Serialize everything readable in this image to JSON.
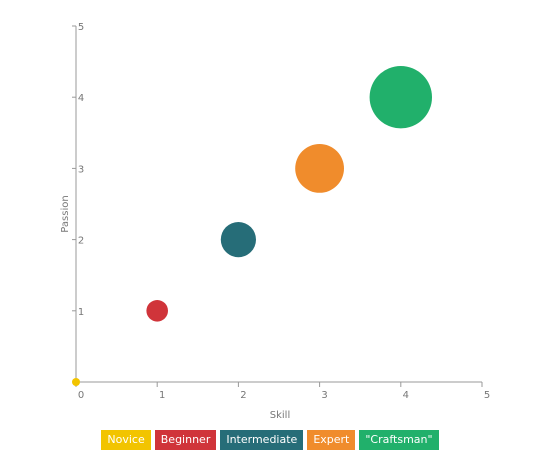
{
  "chart_data": {
    "type": "scatter",
    "xlabel": "Skill",
    "ylabel": "Passion",
    "xlim": [
      0,
      5
    ],
    "ylim": [
      0,
      5
    ],
    "xticks": [
      "0",
      "1",
      "2",
      "3",
      "4",
      "5"
    ],
    "yticks": [
      "1",
      "2",
      "3",
      "4",
      "5"
    ],
    "grid": false,
    "legend_position": "bottom",
    "series": [
      {
        "name": "Novice",
        "color": "#f2c400",
        "x": 0,
        "y": 0,
        "size": 1
      },
      {
        "name": "Beginner",
        "color": "#d0343a",
        "x": 1,
        "y": 1,
        "size": 2
      },
      {
        "name": "Intermediate",
        "color": "#266d78",
        "x": 2,
        "y": 2,
        "size": 3
      },
      {
        "name": "Expert",
        "color": "#f08c2c",
        "x": 3,
        "y": 3,
        "size": 4
      },
      {
        "name": "\"Craftsman\"",
        "color": "#21b06b",
        "x": 4,
        "y": 4,
        "size": 5
      }
    ]
  }
}
